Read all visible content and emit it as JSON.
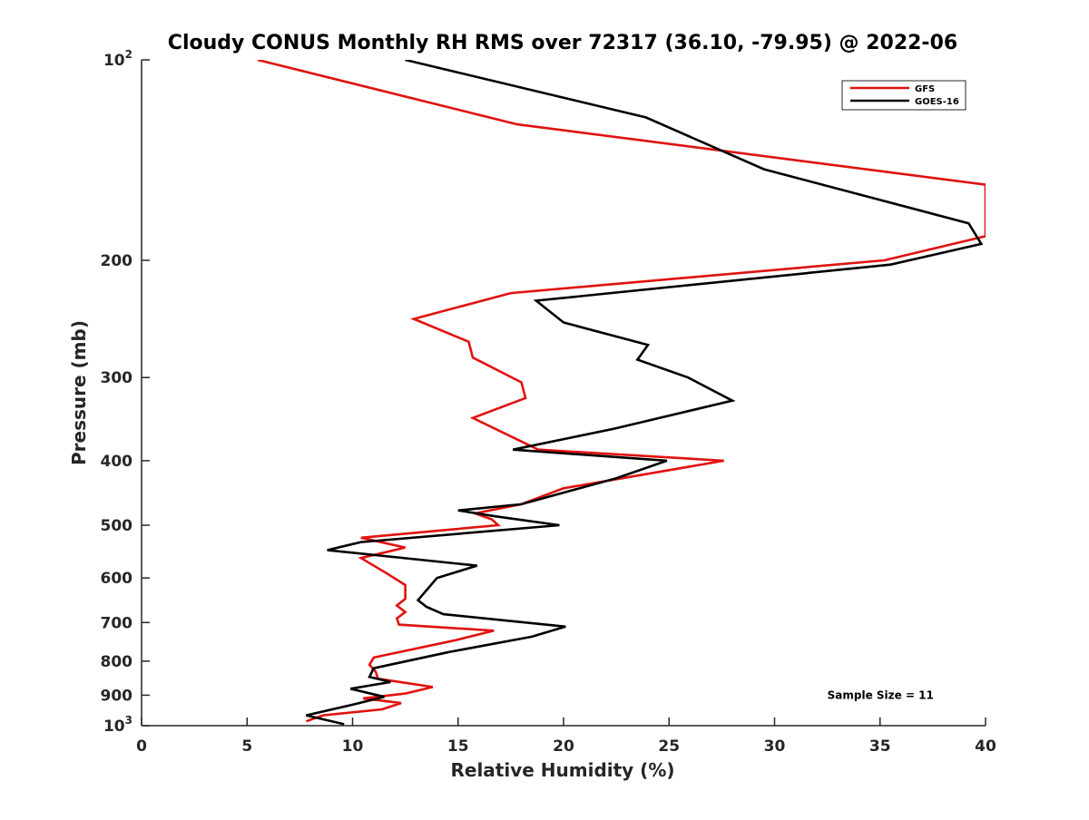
{
  "chart_data": {
    "type": "line",
    "title": "Cloudy CONUS Monthly RH RMS over 72317 (36.10, -79.95) @ 2022-06",
    "xlabel": "Relative Humidity (%)",
    "ylabel": "Pressure (mb)",
    "xlim": [
      0,
      40
    ],
    "ylim": [
      100,
      1000
    ],
    "y_scale": "log",
    "y_reversed": true,
    "grid": false,
    "legend_position": "top-right",
    "x_ticks": [
      0,
      5,
      10,
      15,
      20,
      25,
      30,
      35,
      40
    ],
    "y_ticks": [
      {
        "value": 100,
        "label": "10",
        "sup": "2"
      },
      {
        "value": 200,
        "label": "200",
        "sup": ""
      },
      {
        "value": 300,
        "label": "300",
        "sup": ""
      },
      {
        "value": 400,
        "label": "400",
        "sup": ""
      },
      {
        "value": 500,
        "label": "500",
        "sup": ""
      },
      {
        "value": 600,
        "label": "600",
        "sup": ""
      },
      {
        "value": 700,
        "label": "700",
        "sup": ""
      },
      {
        "value": 800,
        "label": "800",
        "sup": ""
      },
      {
        "value": 900,
        "label": "900",
        "sup": ""
      },
      {
        "value": 1000,
        "label": "10",
        "sup": "3"
      }
    ],
    "series": [
      {
        "name": "GFS",
        "color": "#e0120f",
        "x": [
          5.5,
          17.8,
          40.0,
          40.0,
          35.2,
          17.5,
          12.9,
          15.5,
          15.7,
          18.0,
          18.2,
          15.7,
          18.8,
          27.6,
          20.0,
          18.0,
          15.8,
          16.6,
          16.9,
          10.4,
          12.5,
          10.4,
          11.6,
          12.5,
          12.5,
          12.1,
          12.5,
          12.1,
          12.2,
          16.7,
          14.8,
          11.0,
          10.8,
          11.1,
          11.2,
          13.8,
          12.5,
          10.5,
          12.3,
          11.4,
          8.6,
          7.8
        ],
        "y": [
          100,
          125,
          154,
          184,
          200,
          224,
          245,
          265,
          280,
          305,
          322,
          345,
          385,
          400,
          440,
          465,
          480,
          490,
          500,
          522,
          540,
          560,
          590,
          615,
          645,
          660,
          675,
          690,
          705,
          720,
          745,
          790,
          810,
          830,
          850,
          875,
          895,
          910,
          925,
          945,
          965,
          985
        ]
      },
      {
        "name": "GOES-16",
        "color": "#000000",
        "x": [
          12.5,
          23.9,
          29.5,
          39.2,
          39.8,
          35.5,
          18.7,
          20.0,
          24.0,
          23.5,
          25.9,
          28.0,
          22.4,
          17.6,
          24.9,
          22.5,
          18.0,
          15.0,
          16.8,
          19.8,
          10.4,
          8.8,
          15.9,
          14.0,
          13.1,
          13.5,
          14.3,
          20.1,
          18.5,
          14.6,
          11.0,
          10.8,
          11.8,
          9.9,
          11.5,
          10.0,
          7.8,
          9.6
        ],
        "y": [
          100,
          122,
          146,
          176,
          189,
          203,
          230,
          248,
          268,
          282,
          300,
          325,
          358,
          385,
          400,
          425,
          465,
          475,
          485,
          500,
          530,
          545,
          575,
          600,
          648,
          663,
          680,
          710,
          735,
          775,
          820,
          845,
          860,
          880,
          905,
          930,
          965,
          995
        ]
      }
    ],
    "annotations": [
      {
        "text": "Sample Size = 11",
        "x": 32.5,
        "y": 900
      }
    ]
  }
}
